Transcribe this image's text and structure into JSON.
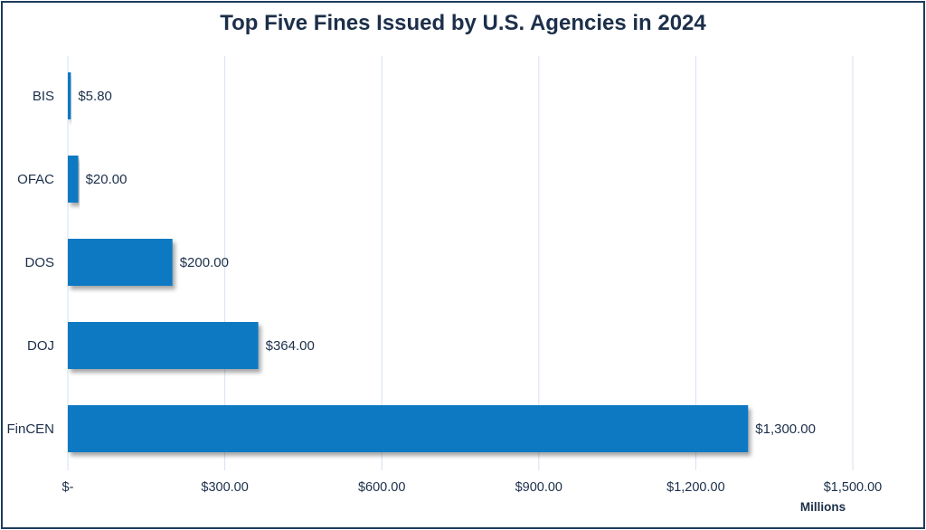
{
  "chart_data": {
    "type": "bar",
    "orientation": "horizontal",
    "title": "Top Five Fines Issued by U.S. Agencies in 2024",
    "categories": [
      "BIS",
      "OFAC",
      "DOS",
      "DOJ",
      "FinCEN"
    ],
    "values": [
      5.8,
      20,
      200,
      364,
      1300
    ],
    "data_labels": [
      "$5.80",
      "$20.00",
      "$200.00",
      "$364.00",
      "$1,300.00"
    ],
    "xlabel": "Millions",
    "ylabel": "",
    "xlim": [
      0,
      1500
    ],
    "x_ticks": [
      0,
      300,
      600,
      900,
      1200,
      1500
    ],
    "x_tick_labels": [
      "$-",
      "$300.00",
      "$600.00",
      "$900.00",
      "$1,200.00",
      "$1,500.00"
    ],
    "grid": "vertical",
    "legend": "none",
    "bar_color": "#0b79c2",
    "grid_color": "#d6e2f0",
    "text_color": "#1c2f4a"
  }
}
